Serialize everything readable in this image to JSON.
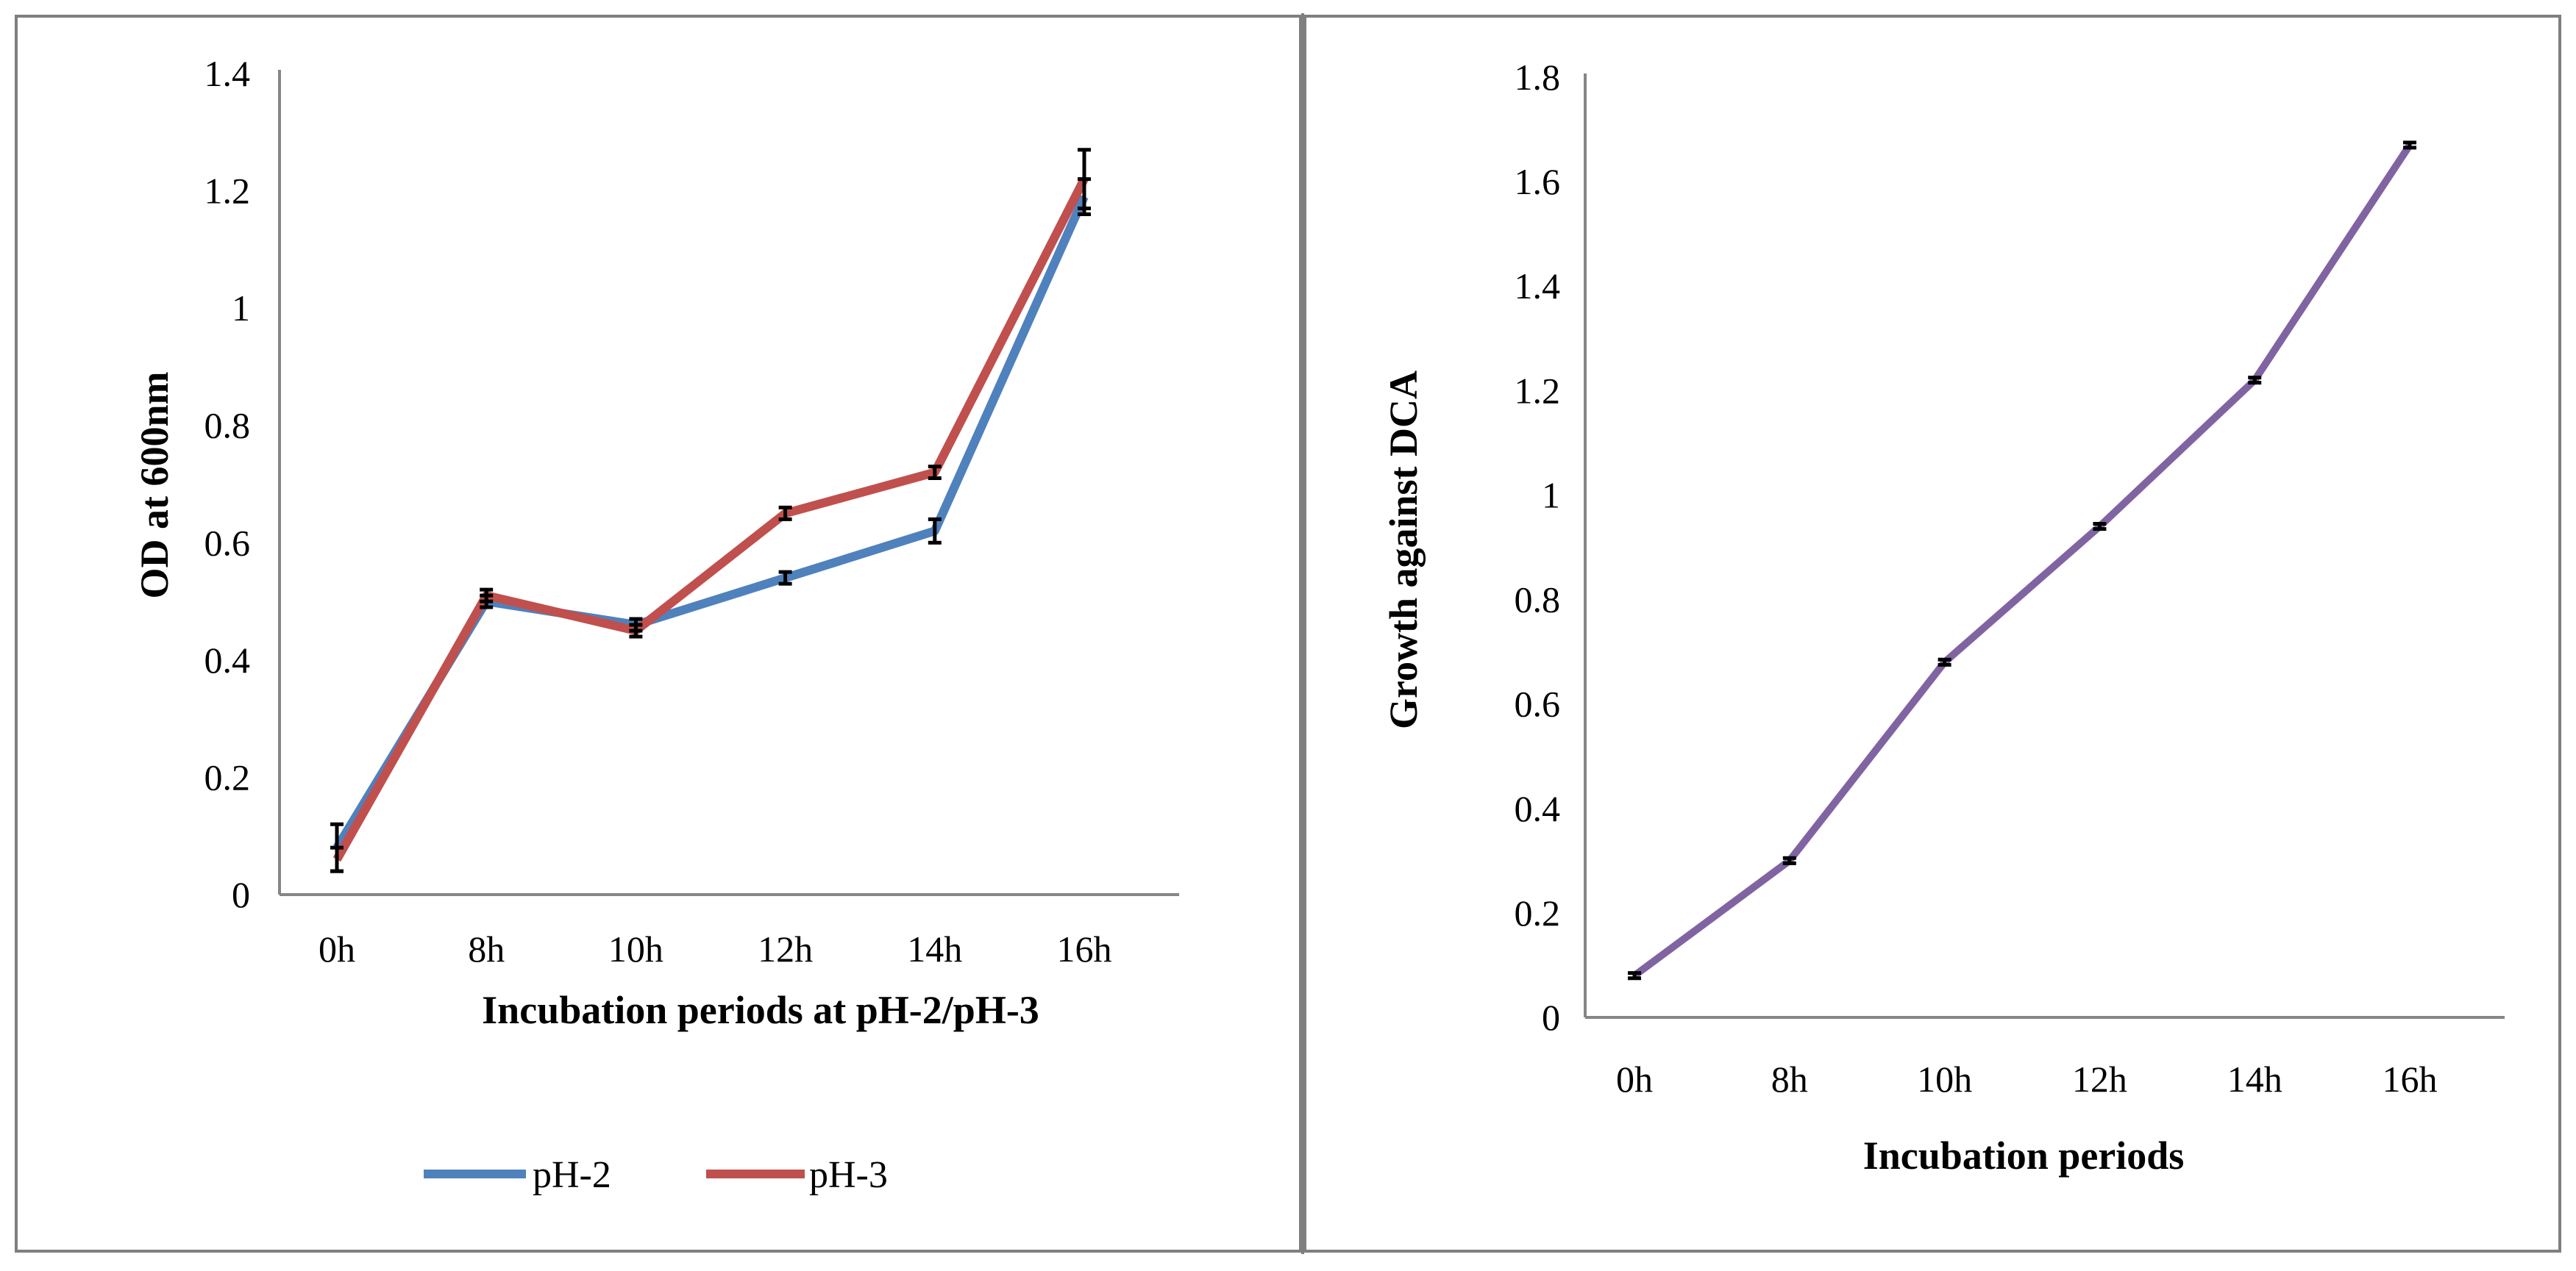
{
  "chart_data": [
    {
      "type": "line",
      "title": "",
      "xlabel": "Incubation periods at pH-2/pH-3",
      "ylabel": "OD at 600nm",
      "categories": [
        "0h",
        "8h",
        "10h",
        "12h",
        "14h",
        "16h"
      ],
      "ylim": [
        0,
        1.4
      ],
      "yticks": [
        "0",
        "0.2",
        "0.4",
        "0.6",
        "0.8",
        "1",
        "1.2",
        "1.4"
      ],
      "ytick_values": [
        0,
        0.2,
        0.4,
        0.6,
        0.8,
        1,
        1.2,
        1.4
      ],
      "grid": false,
      "legend_position": "bottom",
      "series": [
        {
          "name": "pH-2",
          "color": "#4F81BD",
          "values": [
            0.08,
            0.5,
            0.46,
            0.54,
            0.62,
            1.19
          ],
          "errors": [
            0.04,
            0.01,
            0.01,
            0.01,
            0.02,
            0.03
          ]
        },
        {
          "name": "pH-3",
          "color": "#C0504D",
          "values": [
            0.06,
            0.51,
            0.45,
            0.65,
            0.72,
            1.22
          ],
          "errors": [
            0.02,
            0.01,
            0.01,
            0.01,
            0.01,
            0.05
          ]
        }
      ]
    },
    {
      "type": "line",
      "title": "",
      "xlabel": "Incubation periods",
      "ylabel": "Growth against DCA",
      "categories": [
        "0h",
        "8h",
        "10h",
        "12h",
        "14h",
        "16h"
      ],
      "ylim": [
        0,
        1.8
      ],
      "yticks": [
        "0",
        "0.2",
        "0.4",
        "0.6",
        "0.8",
        "1",
        "1.2",
        "1.4",
        "1.6",
        "1.8"
      ],
      "ytick_values": [
        0,
        0.2,
        0.4,
        0.6,
        0.8,
        1,
        1.2,
        1.4,
        1.6,
        1.8
      ],
      "grid": false,
      "legend_position": "none",
      "series": [
        {
          "name": "DCA",
          "color": "#8064A2",
          "values": [
            0.08,
            0.3,
            0.68,
            0.94,
            1.22,
            1.67
          ],
          "errors": [
            0.005,
            0.005,
            0.005,
            0.005,
            0.005,
            0.005
          ]
        }
      ]
    }
  ]
}
